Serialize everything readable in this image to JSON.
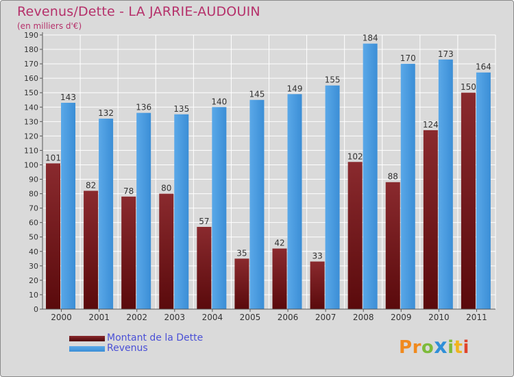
{
  "header": {
    "title": "Revenus/Dette - LA JARRIE-AUDOUIN",
    "subtitle": "(en milliers d'€)"
  },
  "chart_data": {
    "type": "bar",
    "title": "Revenus/Dette - LA JARRIE-AUDOUIN",
    "ylabel": "(en milliers d'€)",
    "xlabel": "",
    "categories": [
      "2000",
      "2001",
      "2002",
      "2003",
      "2004",
      "2005",
      "2006",
      "2007",
      "2008",
      "2009",
      "2010",
      "2011"
    ],
    "series": [
      {
        "name": "Montant de la Dette",
        "color": "#7a2226",
        "values": [
          101,
          82,
          78,
          80,
          57,
          35,
          42,
          33,
          102,
          88,
          124,
          150
        ]
      },
      {
        "name": "Revenus",
        "color": "#4a9ee0",
        "values": [
          143,
          132,
          136,
          135,
          140,
          145,
          149,
          155,
          184,
          170,
          173,
          164
        ]
      }
    ],
    "ylim": [
      0,
      190
    ],
    "ytick_step": 10,
    "grid": true,
    "legend_position": "bottom-left"
  },
  "legend": {
    "debt_label": "Montant de la Dette",
    "revenue_label": "Revenus"
  },
  "brand": {
    "letters": [
      "P",
      "r",
      "o",
      "x",
      "i",
      "t",
      "i"
    ],
    "colors": [
      "#f08a1e",
      "#f08a1e",
      "#7dbb3a",
      "#2f8fd8",
      "#7dbb3a",
      "#f0b41e",
      "#e0442c"
    ]
  }
}
